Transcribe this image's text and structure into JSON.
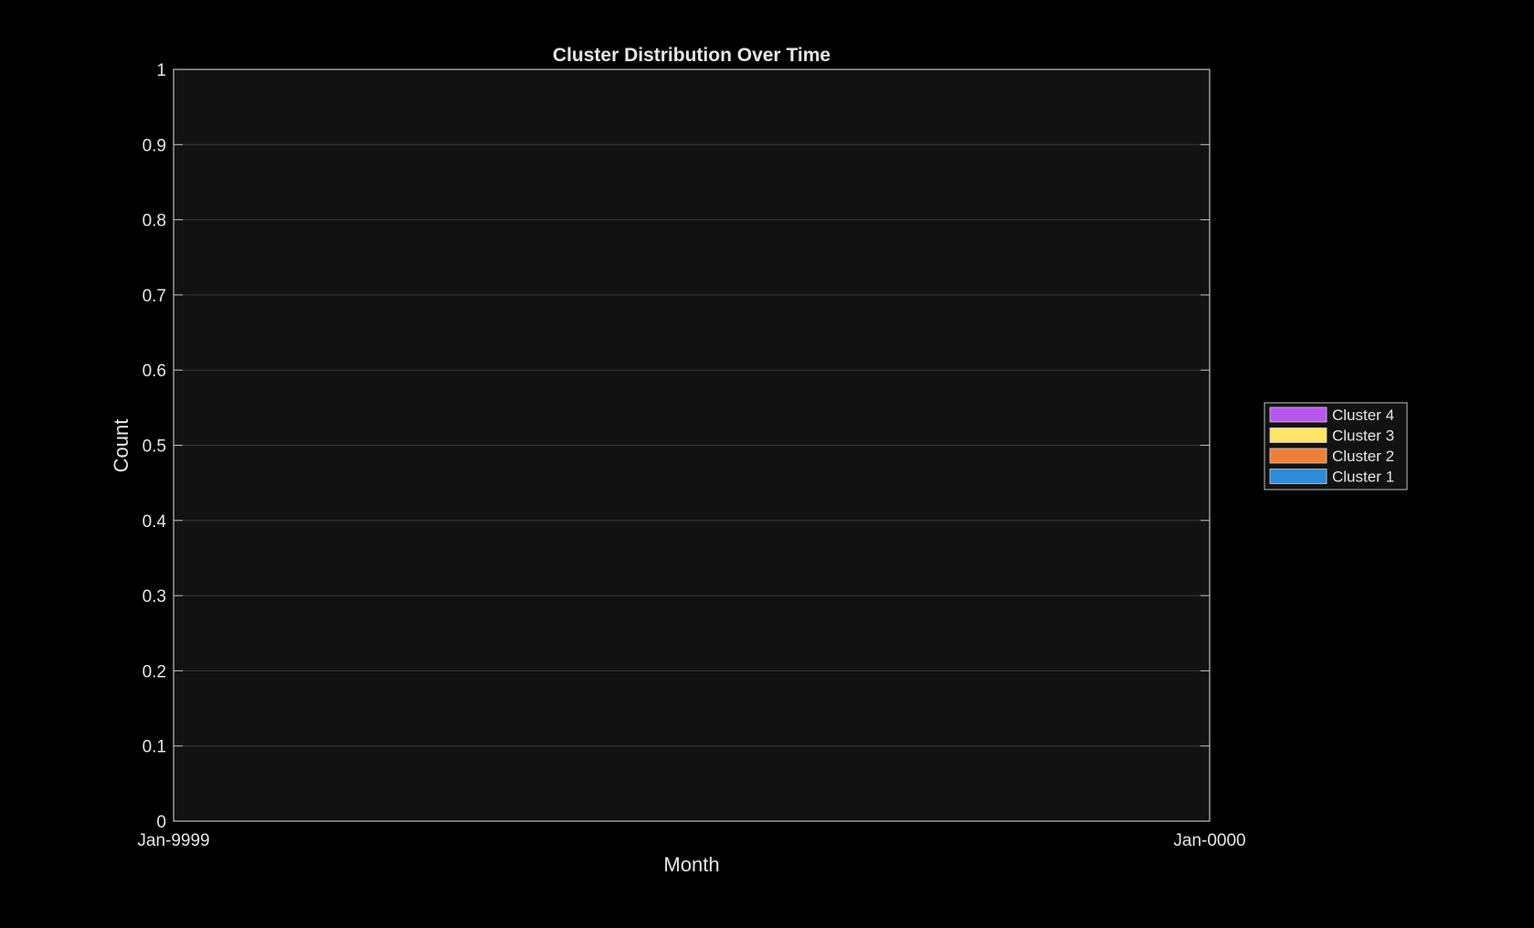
{
  "chart_data": {
    "type": "area",
    "title": "Cluster Distribution Over Time",
    "xlabel": "Month",
    "ylabel": "Count",
    "x_tick_labels": [
      "Jan-9999",
      "Jan-0000"
    ],
    "ylim": [
      0,
      1
    ],
    "y_ticks": [
      0,
      0.1,
      0.2,
      0.3,
      0.4,
      0.5,
      0.6,
      0.7,
      0.8,
      0.9,
      1
    ],
    "y_tick_labels": [
      "0",
      "0.1",
      "0.2",
      "0.3",
      "0.4",
      "0.5",
      "0.6",
      "0.7",
      "0.8",
      "0.9",
      "1"
    ],
    "grid": true,
    "legend_position": "right",
    "series": [
      {
        "name": "Cluster 4",
        "color": "#b857f0",
        "values": []
      },
      {
        "name": "Cluster 3",
        "color": "#ffe566",
        "values": []
      },
      {
        "name": "Cluster 2",
        "color": "#f07f35",
        "values": []
      },
      {
        "name": "Cluster 1",
        "color": "#2f8ad8",
        "values": []
      }
    ],
    "colors": {
      "background": "#000000",
      "plot_background": "#121212",
      "axis": "#bfbfbf",
      "grid": "#3a3a3a",
      "text": "#e6e6e6"
    }
  }
}
